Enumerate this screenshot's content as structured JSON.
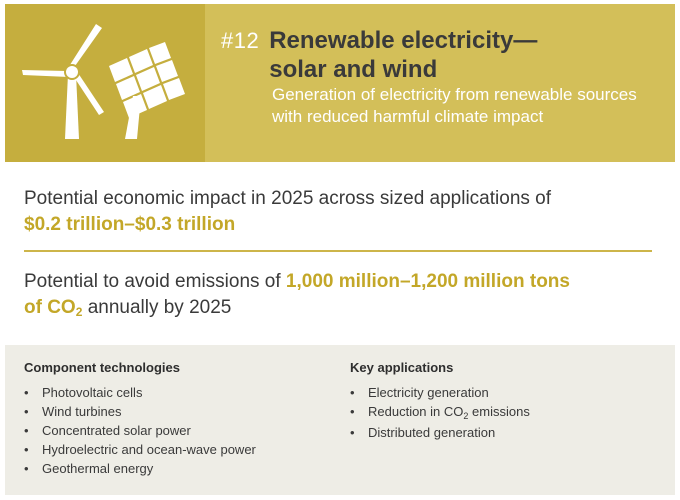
{
  "header": {
    "number": "#12",
    "title": "Renewable electricity— solar and wind",
    "subtitle": "Generation of electricity from renewable sources with reduced harmful climate impact",
    "colors": {
      "icon_bg": "#c5ae3e",
      "title_bg": "#d3bf59",
      "highlight": "#c3a728"
    },
    "icons": [
      "wind-turbine-icon",
      "solar-panel-icon"
    ]
  },
  "economic": {
    "text": "Potential economic impact in 2025 across sized applications of",
    "value": "$0.2 trillion–$0.3 trillion"
  },
  "emissions": {
    "text_before": "Potential to avoid emissions of",
    "value_part1": "1,000 million–1,200 million tons",
    "value_part2": "of CO",
    "value_sub": "2",
    "text_after": "annually by 2025"
  },
  "components": {
    "heading": "Component technologies",
    "items": [
      "Photovoltaic cells",
      "Wind turbines",
      "Concentrated solar power",
      "Hydroelectric and ocean-wave power",
      "Geothermal energy"
    ]
  },
  "applications": {
    "heading": "Key applications",
    "items": [
      {
        "prefix": "Electricity generation",
        "sub": "",
        "suffix": ""
      },
      {
        "prefix": "Reduction in CO",
        "sub": "2",
        "suffix": " emissions"
      },
      {
        "prefix": "Distributed generation",
        "sub": "",
        "suffix": ""
      }
    ]
  }
}
